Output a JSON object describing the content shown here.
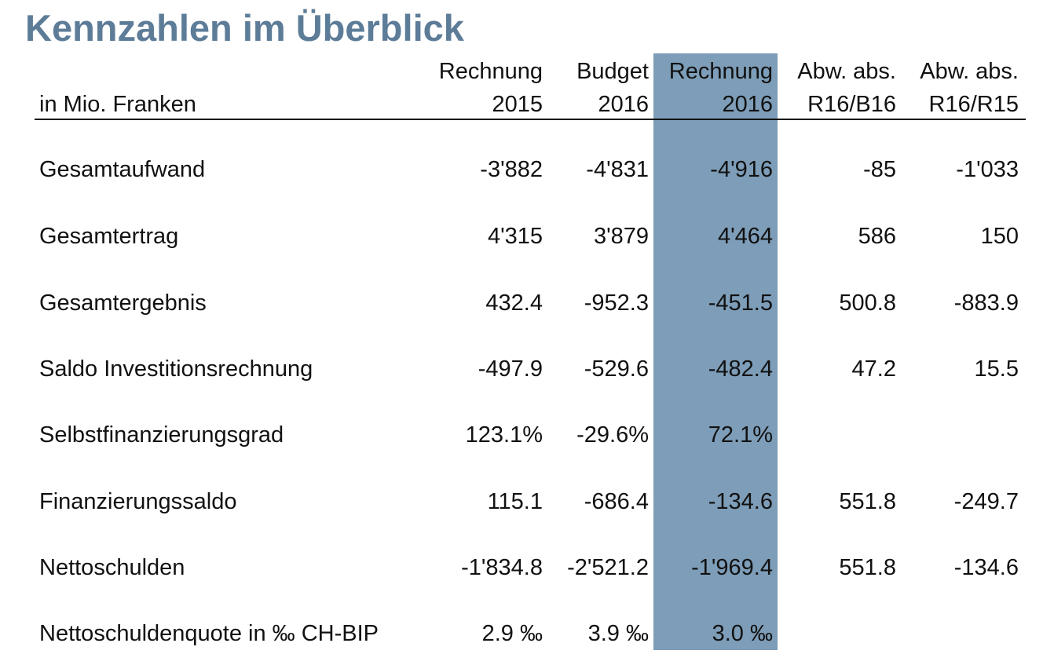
{
  "title": "Kennzahlen im Überblick",
  "unit_label": "in Mio. Franken",
  "columns": [
    {
      "line1": "Rechnung",
      "line2": "2015"
    },
    {
      "line1": "Budget",
      "line2": "2016"
    },
    {
      "line1": "Rechnung",
      "line2": "2016"
    },
    {
      "line1": "Abw. abs.",
      "line2": "R16/B16"
    },
    {
      "line1": "Abw. abs.",
      "line2": "R16/R15"
    }
  ],
  "rows": [
    {
      "label": "Gesamtaufwand",
      "values": [
        "-3'882",
        "-4'831",
        "-4'916",
        "-85",
        "-1'033"
      ]
    },
    {
      "label": "Gesamtertrag",
      "values": [
        "4'315",
        "3'879",
        "4'464",
        "586",
        "150"
      ]
    },
    {
      "label": "Gesamtergebnis",
      "values": [
        "432.4",
        "-952.3",
        "-451.5",
        "500.8",
        "-883.9"
      ]
    },
    {
      "label": "Saldo Investitionsrechnung",
      "values": [
        "-497.9",
        "-529.6",
        "-482.4",
        "47.2",
        "15.5"
      ]
    },
    {
      "label": "Selbstfinanzierungsgrad",
      "values": [
        "123.1%",
        "-29.6%",
        "72.1%",
        "",
        ""
      ]
    },
    {
      "label": "Finanzierungssaldo",
      "values": [
        "115.1",
        "-686.4",
        "-134.6",
        "551.8",
        "-249.7"
      ]
    },
    {
      "label": "Nettoschulden",
      "values": [
        "-1'834.8",
        "-2'521.2",
        "-1'969.4",
        "551.8",
        "-134.6"
      ]
    },
    {
      "label": "Nettoschuldenquote in ‰ CH-BIP",
      "values": [
        "2.9 ‰",
        "3.9 ‰",
        "3.0 ‰",
        "",
        ""
      ]
    }
  ],
  "colors": {
    "title": "#5d7c98",
    "highlight_column": "#7d9db8"
  }
}
